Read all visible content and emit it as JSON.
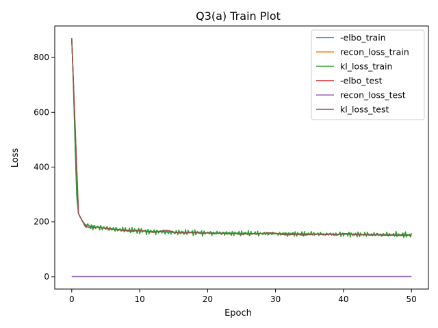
{
  "chart_data": {
    "type": "line",
    "title": "Q3(a) Train Plot",
    "xlabel": "Epoch",
    "ylabel": "Loss",
    "xlim": [
      -2.5,
      52.5
    ],
    "ylim": [
      -45,
      915
    ],
    "xticks": [
      0,
      10,
      20,
      30,
      40,
      50
    ],
    "yticks": [
      0,
      200,
      400,
      600,
      800
    ],
    "grid": false,
    "legend_position": "upper-right",
    "series": [
      {
        "name": "-elbo_train",
        "color": "#1f77b4"
      },
      {
        "name": "recon_loss_train",
        "color": "#ff7f0e"
      },
      {
        "name": "kl_loss_train",
        "color": "#2ca02c"
      },
      {
        "name": "-elbo_test",
        "color": "#d62728"
      },
      {
        "name": "recon_loss_test",
        "color": "#9467bd"
      },
      {
        "name": "kl_loss_test",
        "color": "#8c564b"
      }
    ],
    "train_curve": {
      "x": [
        0,
        0.25,
        0.5,
        0.75,
        1,
        1.5,
        2,
        2.5,
        3,
        3.5,
        4,
        5,
        6,
        8,
        10,
        12,
        15,
        20,
        25,
        30,
        35,
        40,
        45,
        50
      ],
      "y": [
        870,
        700,
        480,
        290,
        230,
        205,
        190,
        186,
        183,
        181,
        180,
        177,
        174,
        170,
        167,
        165,
        162,
        160,
        158,
        157,
        156,
        155,
        154,
        153
      ]
    },
    "test_curve": {
      "x": [
        0,
        1,
        2,
        3,
        4,
        5,
        6,
        7,
        8,
        9,
        10,
        11,
        12,
        13,
        14,
        15,
        16,
        17,
        18,
        19,
        20,
        21,
        22,
        23,
        24,
        25,
        26,
        27,
        28,
        29,
        30,
        31,
        32,
        33,
        34,
        35,
        36,
        37,
        38,
        39,
        40,
        41,
        42,
        43,
        44,
        45,
        46,
        47,
        48,
        49,
        50
      ],
      "y": [
        870,
        230,
        183,
        178,
        181,
        176,
        173,
        171,
        168,
        166,
        170,
        165,
        162,
        166,
        169,
        163,
        160,
        161,
        163,
        158,
        160,
        157,
        159,
        156,
        158,
        155,
        157,
        156,
        158,
        160,
        159,
        154,
        153,
        155,
        152,
        154,
        156,
        153,
        155,
        152,
        158,
        156,
        153,
        154,
        152,
        153,
        151,
        152,
        151,
        150,
        151
      ]
    },
    "recon_value": 1
  }
}
